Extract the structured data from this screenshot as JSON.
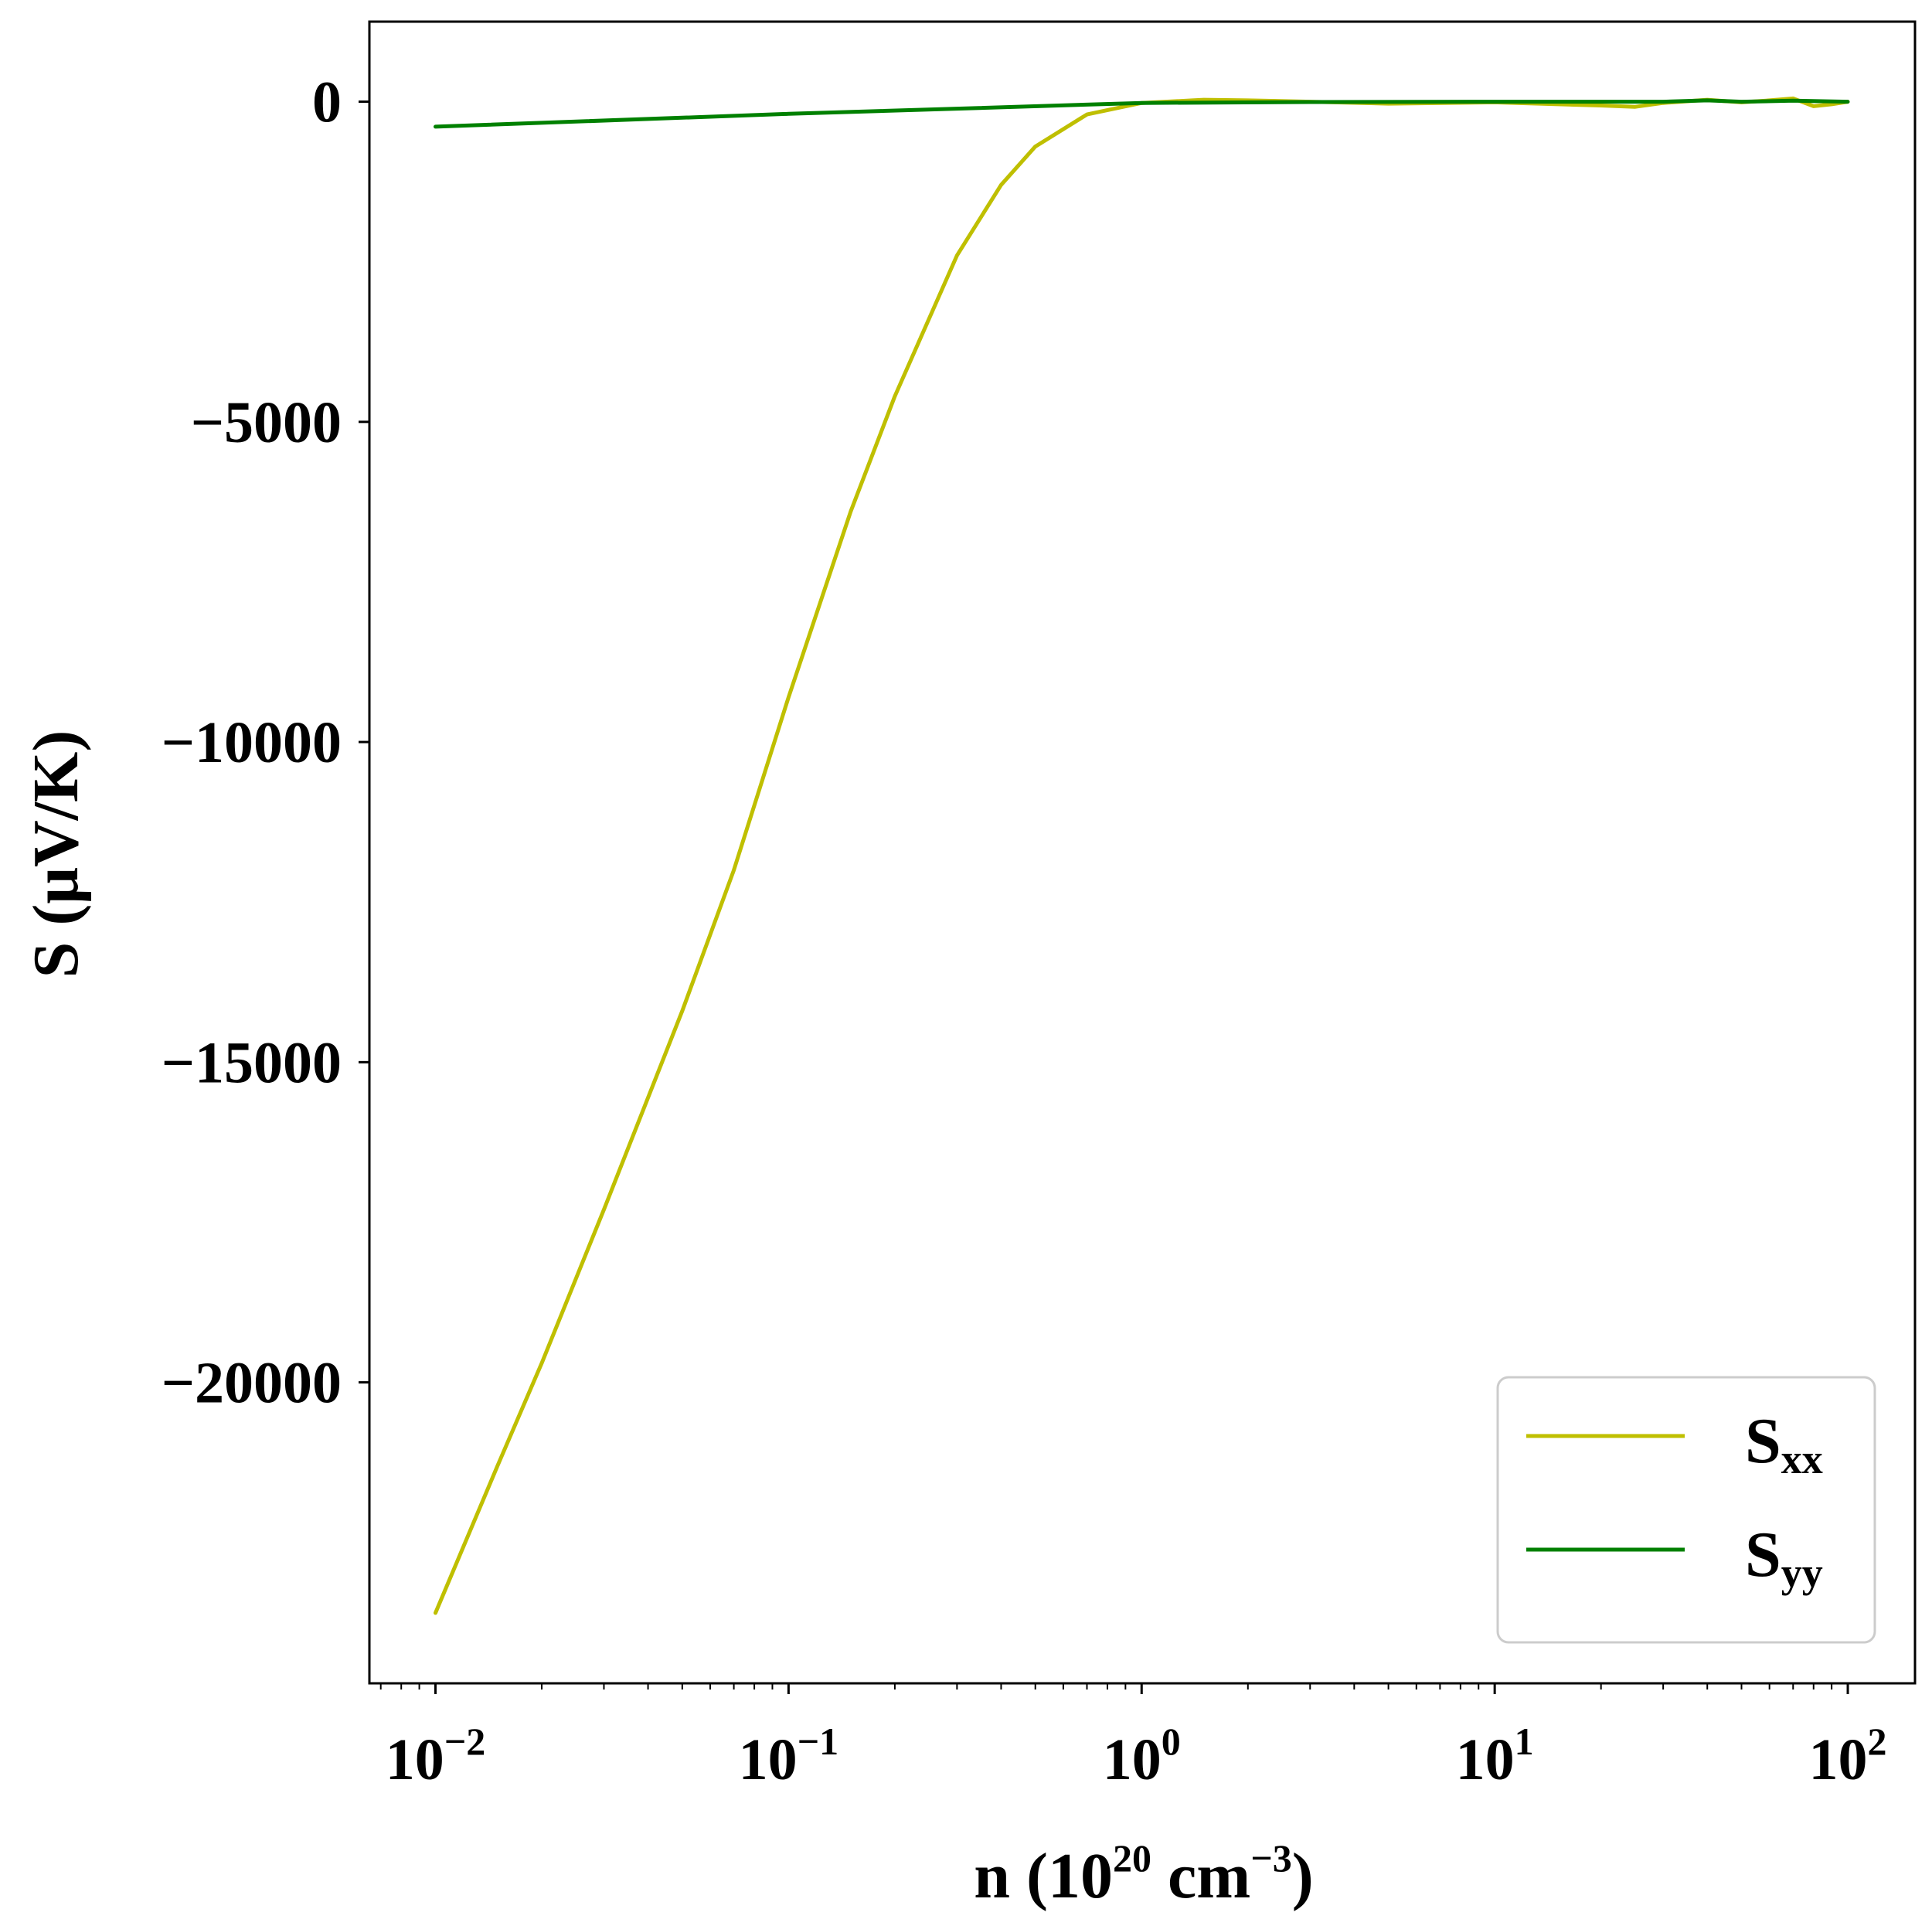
{
  "chart_data": {
    "type": "line",
    "title": "",
    "xlabel": {
      "prefix": "n (10",
      "exp1": "20",
      "middle": " cm",
      "exp2": "−3",
      "suffix": ")"
    },
    "ylabel": "S (μV/K)",
    "xscale": "log",
    "xlim": [
      0.0065,
      155
    ],
    "ylim": [
      -24700,
      1250
    ],
    "grid": false,
    "legend_position": "lower-right",
    "yticks": [
      {
        "value": 0,
        "label": "0"
      },
      {
        "value": -5000,
        "label": "−5000"
      },
      {
        "value": -10000,
        "label": "−10000"
      },
      {
        "value": -15000,
        "label": "−15000"
      },
      {
        "value": -20000,
        "label": "−20000"
      }
    ],
    "xticks": [
      {
        "value": 0.01,
        "base": "10",
        "exp": "−2"
      },
      {
        "value": 0.1,
        "base": "10",
        "exp": "−1"
      },
      {
        "value": 1,
        "base": "10",
        "exp": "0"
      },
      {
        "value": 10,
        "base": "10",
        "exp": "1"
      },
      {
        "value": 100,
        "base": "10",
        "exp": "2"
      }
    ],
    "series": [
      {
        "name": {
          "main": "S",
          "sub": "xx"
        },
        "color": "#bfbf00",
        "x": [
          0.01,
          0.015,
          0.02,
          0.03,
          0.05,
          0.07,
          0.1,
          0.15,
          0.2,
          0.3,
          0.4,
          0.5,
          0.7,
          1.0,
          1.5,
          2,
          3,
          5,
          10,
          20,
          25,
          30,
          40,
          50,
          60,
          70,
          80,
          90,
          100
        ],
        "y": [
          -23600,
          -21300,
          -19700,
          -17300,
          -14200,
          -12000,
          -9300,
          -6400,
          -4600,
          -2400,
          -1300,
          -700,
          -200,
          -20,
          30,
          20,
          0,
          -30,
          -10,
          -60,
          -80,
          -20,
          30,
          -10,
          20,
          50,
          -70,
          -40,
          0
        ]
      },
      {
        "name": {
          "main": "S",
          "sub": "yy"
        },
        "color": "#008000",
        "x": [
          0.01,
          0.1,
          1,
          3,
          10,
          30,
          40,
          50,
          70,
          100
        ],
        "y": [
          -390,
          -190,
          -20,
          -5,
          0,
          0,
          20,
          0,
          15,
          0
        ]
      }
    ]
  }
}
